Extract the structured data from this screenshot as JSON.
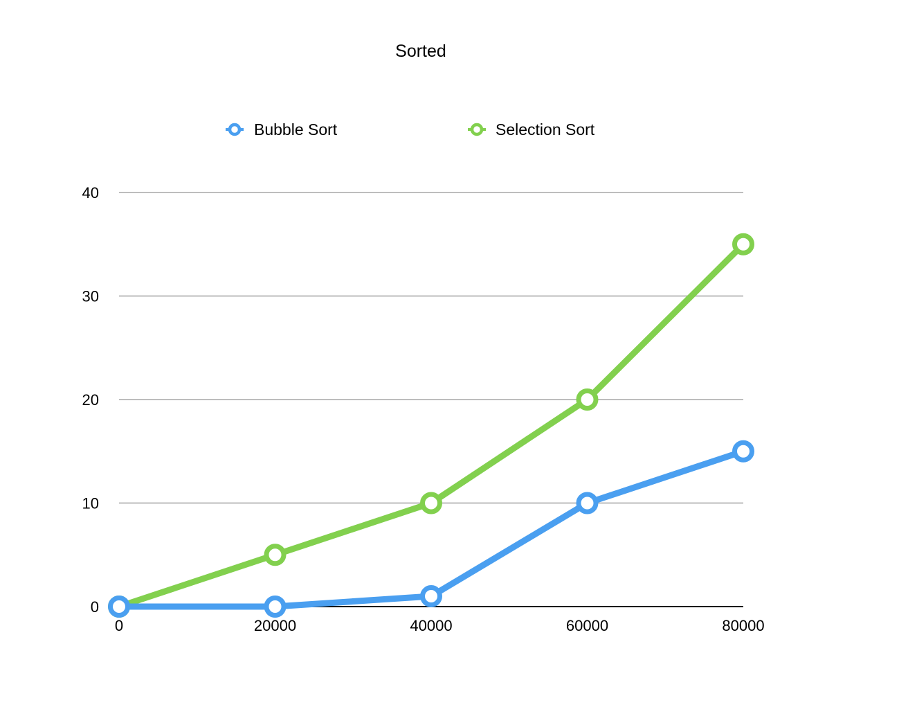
{
  "chart_data": {
    "type": "line",
    "title": "Sorted",
    "xlabel": "",
    "ylabel": "",
    "x": [
      0,
      20000,
      40000,
      60000,
      80000
    ],
    "x_tick_labels": [
      "0",
      "20000",
      "40000",
      "60000",
      "80000"
    ],
    "y_tick_values": [
      0,
      10,
      20,
      30,
      40
    ],
    "y_tick_labels": [
      "0",
      "10",
      "20",
      "30",
      "40"
    ],
    "xlim": [
      0,
      80000
    ],
    "ylim": [
      0,
      40
    ],
    "grid": true,
    "legend_position": "top-center",
    "series": [
      {
        "name": "Bubble Sort",
        "color": "#4A9FF0",
        "values": [
          0,
          0,
          1,
          10,
          15
        ]
      },
      {
        "name": "Selection Sort",
        "color": "#82D04E",
        "values": [
          0,
          5,
          10,
          20,
          35
        ]
      }
    ]
  }
}
